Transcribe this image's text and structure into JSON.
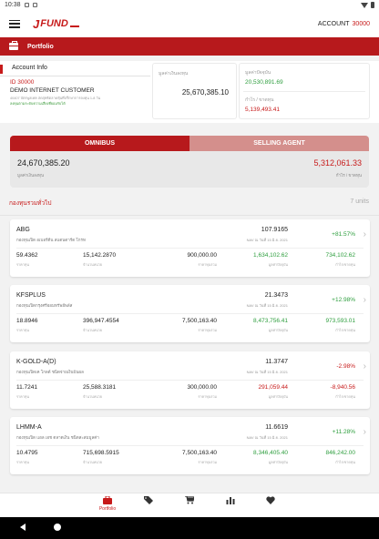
{
  "status_bar": {
    "time": "10:38"
  },
  "header": {
    "logo_mark": "J",
    "logo_text": "FUND",
    "account_label": "ACCOUNT",
    "account_number": "30000"
  },
  "tab_bar": {
    "title": "Portfolio",
    "icon": "briefcase-icon"
  },
  "account_info": {
    "heading": "Account Info",
    "id": "ID 30000",
    "name": "DEMO INTERNET CUSTOMER",
    "sub_line1": "40407 บัตรพูลเทค สดสุทธิตลาดหุ้นที่ปรึกษาการลงทุน 1-8 วัน",
    "sub_line2": "ลงทุนตามระดับความเสี่ยงที่ยอมรับได้",
    "market_value_label": "มูลค่าเงินลงทุน",
    "market_value": "25,670,385.10",
    "current_value_label": "มูลค่าปัจจุบัน",
    "current_value": "20,530,891.69",
    "profit_loss_label": "กำไร / ขาดทุน",
    "profit_loss": "5,139,493.41"
  },
  "segment": {
    "tab_active": "OMNIBUS",
    "tab_inactive": "SELLING AGENT",
    "left_value": "24,670,385.20",
    "left_label": "มูลค่าเงินลงทุน",
    "right_value": "5,312,061.33",
    "right_label": "กำไร / ขาดทุน"
  },
  "section": {
    "title": "กองทุนรวมทั่วไป",
    "count": "7 units"
  },
  "funds": [
    {
      "code": "ABG",
      "desc": "กองทุนเปิด อเบอร์ดีน สแตนดาร์ด โกรท",
      "nav": "107.9165",
      "nav_date": "NAV ณ วันที่ 15 มิ.ย. 2021",
      "change": "+81.57%",
      "c1": "59.4362",
      "c1_label": "ราคาทุน",
      "c2": "15,142.2870",
      "c2_label": "จำนวนหน่วย",
      "c3": "900,000.00",
      "c3_label": "ราคาทุนรวม",
      "c4": "1,634,102.62",
      "c4_label": "มูลค่าปัจจุบัน",
      "c5": "734,102.62",
      "c5_label": "กำไร/ขาดทุน"
    },
    {
      "code": "KFSPLUS",
      "desc": "กองทุนเปิดกรุงศรีออมทรัพย์พลัส",
      "nav": "21.3473",
      "nav_date": "NAV ณ วันที่ 15 มิ.ย. 2021",
      "change": "+12.98%",
      "c1": "18.8946",
      "c1_label": "ราคาทุน",
      "c2": "396,947.4554",
      "c2_label": "จำนวนหน่วย",
      "c3": "7,500,163.40",
      "c3_label": "ราคาทุนรวม",
      "c4": "8,473,756.41",
      "c4_label": "มูลค่าปัจจุบัน",
      "c5": "973,593.01",
      "c5_label": "กำไร/ขาดทุน"
    },
    {
      "code": "K-GOLD-A(D)",
      "desc": "กองทุนเปิดเค โกลด์ ชนิดจ่ายเงินปันผล",
      "nav": "11.3747",
      "nav_date": "NAV ณ วันที่ 15 มิ.ย. 2021",
      "change": "-2.98%",
      "c1": "11.7241",
      "c1_label": "ราคาทุน",
      "c2": "25,588.3181",
      "c2_label": "จำนวนหน่วย",
      "c3": "300,000.00",
      "c3_label": "ราคาทุนรวม",
      "c4": "291,059.44",
      "c4_label": "มูลค่าปัจจุบัน",
      "c5": "-8,940.56",
      "c5_label": "กำไร/ขาดทุน"
    },
    {
      "code": "LHMM-A",
      "desc": "กองทุนเปิด แอล เอช ตลาดเงิน ชนิดสะสมมูลค่า",
      "nav": "11.6619",
      "nav_date": "NAV ณ วันที่ 15 มิ.ย. 2021",
      "change": "+11.28%",
      "c1": "10.4795",
      "c1_label": "ราคาทุน",
      "c2": "715,698.5915",
      "c2_label": "จำนวนหน่วย",
      "c3": "7,500,163.40",
      "c3_label": "ราคาทุนรวม",
      "c4": "8,346,405.40",
      "c4_label": "มูลค่าปัจจุบัน",
      "c5": "846,242.00",
      "c5_label": "กำไร/ขาดทุน"
    }
  ],
  "bottom_nav": {
    "portfolio_label": "Portfolio",
    "items": [
      "briefcase-icon",
      "tag-icon",
      "cart-icon",
      "bar-chart-icon",
      "heart-icon"
    ]
  },
  "colors": {
    "brand_red": "#b7191c",
    "positive": "#2e9e3e",
    "negative": "#c71a1a",
    "inactive_tab": "#d48f8c"
  }
}
